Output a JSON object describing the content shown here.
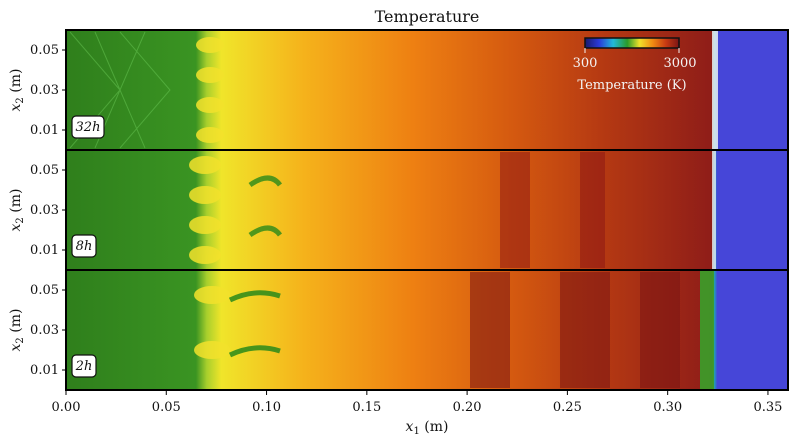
{
  "chart_data": {
    "type": "heatmap",
    "title": "Temperature",
    "xlabel": "x_1 (m)",
    "ylabel": "x_2 (m)",
    "xlim": [
      0.0,
      0.36
    ],
    "ylim": [
      0.0,
      0.06
    ],
    "x_ticks": [
      "0.00",
      "0.05",
      "0.10",
      "0.15",
      "0.20",
      "0.25",
      "0.30",
      "0.35"
    ],
    "y_ticks": [
      "0.01",
      "0.03",
      "0.05"
    ],
    "panels": [
      {
        "label": "32h",
        "resolution": "32h"
      },
      {
        "label": "8h",
        "resolution": "8h"
      },
      {
        "label": "2h",
        "resolution": "2h"
      }
    ],
    "colorbar": {
      "label": "Temperature (K)",
      "min": 300,
      "max": 3000,
      "min_label": "300",
      "max_label": "3000",
      "placement": "top-right, inside top panel"
    },
    "features": {
      "product_front_start_x": 0.06,
      "shock_front_x": 0.324,
      "unburnt_region": "x_1 > 0.324 (lowest temperature, blue)",
      "shock_cell_region": "x_1 < 0.065 (green, ~1500 K)"
    },
    "colors": {
      "unburnt": "#4646d8",
      "shock_region": "#2a8a1a",
      "hot_products": "#d85c00",
      "hottest": "#8a1414"
    }
  }
}
